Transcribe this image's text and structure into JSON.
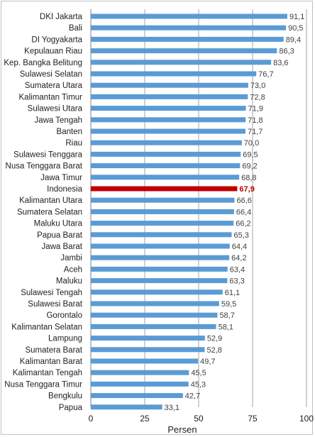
{
  "chart_data": {
    "type": "bar",
    "orientation": "horizontal",
    "title": "",
    "xlabel": "Persen",
    "ylabel": "",
    "xlim": [
      0,
      100
    ],
    "xticks": [
      0,
      25,
      50,
      75,
      100
    ],
    "grid": "vertical",
    "bar_color": "#5b9bd5",
    "highlight_color": "#c00000",
    "highlight_category": "Indonesia",
    "decimal_separator": ",",
    "categories": [
      "DKI Jakarta",
      "Bali",
      "DI Yogyakarta",
      "Kepulauan Riau",
      "Kep. Bangka Belitung",
      "Sulawesi Selatan",
      "Sumatera Utara",
      "Kalimantan Timur",
      "Sulawesi Utara",
      "Jawa Tengah",
      "Banten",
      "Riau",
      "Sulawesi Tenggara",
      "Nusa Tenggara Barat",
      "Jawa Timur",
      "Indonesia",
      "Kalimantan Utara",
      "Sumatera Selatan",
      "Maluku Utara",
      "Papua Barat",
      "Jawa Barat",
      "Jambi",
      "Aceh",
      "Maluku",
      "Sulawesi Tengah",
      "Sulawesi Barat",
      "Gorontalo",
      "Kalimantan Selatan",
      "Lampung",
      "Sumatera Barat",
      "Kalimantan Barat",
      "Kalimantan Tengah",
      "Nusa Tenggara Timur",
      "Bengkulu",
      "Papua"
    ],
    "values": [
      91.1,
      90.5,
      89.4,
      86.3,
      83.6,
      76.7,
      73.0,
      72.8,
      71.9,
      71.8,
      71.7,
      70.0,
      69.5,
      69.2,
      68.8,
      67.9,
      66.6,
      66.4,
      66.2,
      65.3,
      64.4,
      64.2,
      63.4,
      63.3,
      61.1,
      59.5,
      58.7,
      58.1,
      52.9,
      52.8,
      49.7,
      45.5,
      45.3,
      42.7,
      33.1
    ]
  }
}
